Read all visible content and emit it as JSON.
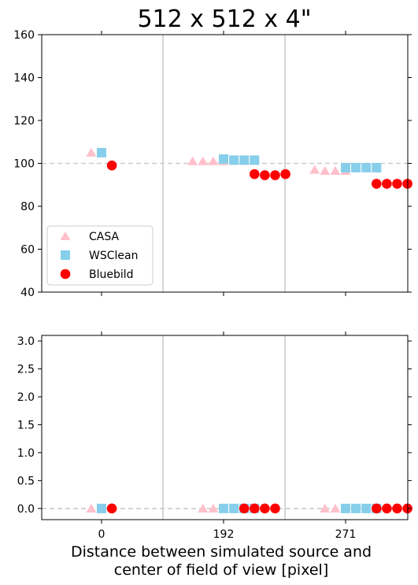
{
  "chart_data": [
    {
      "type": "scatter",
      "panel": "top",
      "title": "512 x 512 x 4\"",
      "xlabel": "",
      "ylabel": "",
      "ylim": [
        40,
        160
      ],
      "yticks": [
        40,
        60,
        80,
        100,
        120,
        140,
        160
      ],
      "reference_line": 100,
      "grid": false,
      "legend": "lower-left",
      "groups": [
        "0",
        "192",
        "271"
      ],
      "series": [
        {
          "name": "CASA",
          "marker": "triangle",
          "color": "#ffc0cb",
          "points": [
            {
              "group": "0",
              "offset": -1,
              "y": 105
            },
            {
              "group": "192",
              "offset": -3,
              "y": 101
            },
            {
              "group": "192",
              "offset": -2,
              "y": 101
            },
            {
              "group": "192",
              "offset": -1,
              "y": 101
            },
            {
              "group": "192",
              "offset": 0,
              "y": 101
            },
            {
              "group": "271",
              "offset": -3,
              "y": 97
            },
            {
              "group": "271",
              "offset": -2,
              "y": 96.5
            },
            {
              "group": "271",
              "offset": -1,
              "y": 96.5
            },
            {
              "group": "271",
              "offset": 0,
              "y": 96.5
            }
          ]
        },
        {
          "name": "WSClean",
          "marker": "square",
          "color": "#87ceeb",
          "points": [
            {
              "group": "0",
              "offset": 0,
              "y": 105
            },
            {
              "group": "192",
              "offset": 0,
              "y": 102
            },
            {
              "group": "192",
              "offset": 1,
              "y": 101.5
            },
            {
              "group": "192",
              "offset": 2,
              "y": 101.5
            },
            {
              "group": "192",
              "offset": 3,
              "y": 101.5
            },
            {
              "group": "271",
              "offset": 0,
              "y": 98
            },
            {
              "group": "271",
              "offset": 1,
              "y": 98
            },
            {
              "group": "271",
              "offset": 2,
              "y": 98
            },
            {
              "group": "271",
              "offset": 3,
              "y": 98
            }
          ]
        },
        {
          "name": "Bluebild",
          "marker": "circle",
          "color": "#ff0000",
          "points": [
            {
              "group": "0",
              "offset": 1,
              "y": 99
            },
            {
              "group": "192",
              "offset": 3,
              "y": 95
            },
            {
              "group": "192",
              "offset": 4,
              "y": 94.5
            },
            {
              "group": "192",
              "offset": 5,
              "y": 94.5
            },
            {
              "group": "192",
              "offset": 6,
              "y": 95
            },
            {
              "group": "271",
              "offset": 3,
              "y": 90.5
            },
            {
              "group": "271",
              "offset": 4,
              "y": 90.5
            },
            {
              "group": "271",
              "offset": 5,
              "y": 90.5
            },
            {
              "group": "271",
              "offset": 6,
              "y": 90.5
            }
          ]
        }
      ]
    },
    {
      "type": "scatter",
      "panel": "bottom",
      "title": "",
      "xlabel": "Distance between simulated source and center of field of view [pixel]",
      "xlabel_lines": [
        "Distance between simulated source and",
        "center of field of view [pixel]"
      ],
      "ylabel": "",
      "ylim": [
        -0.2,
        3.1
      ],
      "yticks": [
        "0.0",
        "0.5",
        "1.0",
        "1.5",
        "2.0",
        "2.5",
        "3.0"
      ],
      "xticks": [
        "0",
        "192",
        "271"
      ],
      "reference_line": 0,
      "grid": false,
      "groups": [
        "0",
        "192",
        "271"
      ],
      "series": [
        {
          "name": "CASA",
          "marker": "triangle",
          "color": "#ffc0cb",
          "points": [
            {
              "group": "0",
              "offset": -1,
              "y": 0
            },
            {
              "group": "192",
              "offset": -2,
              "y": 0
            },
            {
              "group": "192",
              "offset": -1,
              "y": 0
            },
            {
              "group": "192",
              "offset": 0,
              "y": 0
            },
            {
              "group": "271",
              "offset": -2,
              "y": 0
            },
            {
              "group": "271",
              "offset": -1,
              "y": 0
            },
            {
              "group": "271",
              "offset": 0,
              "y": 0
            }
          ]
        },
        {
          "name": "WSClean",
          "marker": "square",
          "color": "#87ceeb",
          "points": [
            {
              "group": "0",
              "offset": 0,
              "y": 0
            },
            {
              "group": "192",
              "offset": 0,
              "y": 0
            },
            {
              "group": "192",
              "offset": 1,
              "y": 0
            },
            {
              "group": "192",
              "offset": 2,
              "y": 0
            },
            {
              "group": "192",
              "offset": 3,
              "y": 0
            },
            {
              "group": "271",
              "offset": 0,
              "y": 0
            },
            {
              "group": "271",
              "offset": 1,
              "y": 0
            },
            {
              "group": "271",
              "offset": 2,
              "y": 0
            },
            {
              "group": "271",
              "offset": 3,
              "y": 0
            }
          ]
        },
        {
          "name": "Bluebild",
          "marker": "circle",
          "color": "#ff0000",
          "points": [
            {
              "group": "0",
              "offset": 1,
              "y": 0
            },
            {
              "group": "192",
              "offset": 2,
              "y": 0
            },
            {
              "group": "192",
              "offset": 3,
              "y": 0
            },
            {
              "group": "192",
              "offset": 4,
              "y": 0
            },
            {
              "group": "192",
              "offset": 5,
              "y": 0
            },
            {
              "group": "271",
              "offset": 3,
              "y": 0
            },
            {
              "group": "271",
              "offset": 4,
              "y": 0
            },
            {
              "group": "271",
              "offset": 5,
              "y": 0
            },
            {
              "group": "271",
              "offset": 6,
              "y": 0
            }
          ]
        }
      ]
    }
  ]
}
